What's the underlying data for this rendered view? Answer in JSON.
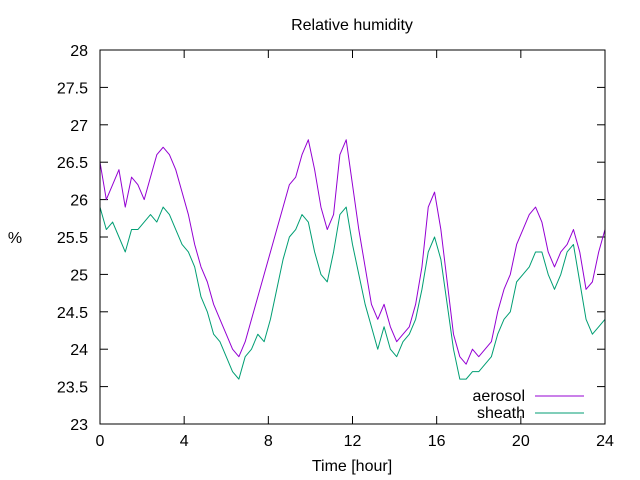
{
  "chart_data": {
    "type": "line",
    "title": "Relative humidity",
    "xlabel": "Time [hour]",
    "ylabel": "%",
    "xlim": [
      0,
      24
    ],
    "ylim": [
      23,
      28
    ],
    "xticks": [
      0,
      4,
      8,
      12,
      16,
      20,
      24
    ],
    "yticks": [
      23,
      23.5,
      24,
      24.5,
      25,
      25.5,
      26,
      26.5,
      27,
      27.5,
      28
    ],
    "grid": false,
    "legend_position": "bottom-right",
    "series": [
      {
        "name": "aerosol",
        "color": "#9400d3",
        "points": [
          [
            0.0,
            26.5
          ],
          [
            0.3,
            26.0
          ],
          [
            0.6,
            26.2
          ],
          [
            0.9,
            26.4
          ],
          [
            1.2,
            25.9
          ],
          [
            1.5,
            26.3
          ],
          [
            1.8,
            26.2
          ],
          [
            2.1,
            26.0
          ],
          [
            2.4,
            26.3
          ],
          [
            2.7,
            26.6
          ],
          [
            3.0,
            26.7
          ],
          [
            3.3,
            26.6
          ],
          [
            3.6,
            26.4
          ],
          [
            3.9,
            26.1
          ],
          [
            4.2,
            25.8
          ],
          [
            4.5,
            25.4
          ],
          [
            4.8,
            25.1
          ],
          [
            5.1,
            24.9
          ],
          [
            5.4,
            24.6
          ],
          [
            5.7,
            24.4
          ],
          [
            6.0,
            24.2
          ],
          [
            6.3,
            24.0
          ],
          [
            6.6,
            23.9
          ],
          [
            6.9,
            24.1
          ],
          [
            7.2,
            24.4
          ],
          [
            7.5,
            24.7
          ],
          [
            7.8,
            25.0
          ],
          [
            8.1,
            25.3
          ],
          [
            8.4,
            25.6
          ],
          [
            8.7,
            25.9
          ],
          [
            9.0,
            26.2
          ],
          [
            9.3,
            26.3
          ],
          [
            9.6,
            26.6
          ],
          [
            9.9,
            26.8
          ],
          [
            10.2,
            26.4
          ],
          [
            10.5,
            25.9
          ],
          [
            10.8,
            25.6
          ],
          [
            11.1,
            25.8
          ],
          [
            11.4,
            26.6
          ],
          [
            11.7,
            26.8
          ],
          [
            12.0,
            26.2
          ],
          [
            12.3,
            25.6
          ],
          [
            12.6,
            25.1
          ],
          [
            12.9,
            24.6
          ],
          [
            13.2,
            24.4
          ],
          [
            13.5,
            24.6
          ],
          [
            13.8,
            24.3
          ],
          [
            14.1,
            24.1
          ],
          [
            14.4,
            24.2
          ],
          [
            14.7,
            24.3
          ],
          [
            15.0,
            24.6
          ],
          [
            15.3,
            25.1
          ],
          [
            15.6,
            25.9
          ],
          [
            15.9,
            26.1
          ],
          [
            16.2,
            25.6
          ],
          [
            16.5,
            24.9
          ],
          [
            16.8,
            24.2
          ],
          [
            17.1,
            23.9
          ],
          [
            17.4,
            23.8
          ],
          [
            17.7,
            24.0
          ],
          [
            18.0,
            23.9
          ],
          [
            18.3,
            24.0
          ],
          [
            18.6,
            24.1
          ],
          [
            18.9,
            24.5
          ],
          [
            19.2,
            24.8
          ],
          [
            19.5,
            25.0
          ],
          [
            19.8,
            25.4
          ],
          [
            20.1,
            25.6
          ],
          [
            20.4,
            25.8
          ],
          [
            20.7,
            25.9
          ],
          [
            21.0,
            25.7
          ],
          [
            21.3,
            25.3
          ],
          [
            21.6,
            25.1
          ],
          [
            21.9,
            25.3
          ],
          [
            22.2,
            25.4
          ],
          [
            22.5,
            25.6
          ],
          [
            22.8,
            25.3
          ],
          [
            23.1,
            24.8
          ],
          [
            23.4,
            24.9
          ],
          [
            23.7,
            25.3
          ],
          [
            24.0,
            25.6
          ]
        ]
      },
      {
        "name": "sheath",
        "color": "#009e73",
        "points": [
          [
            0.0,
            25.9
          ],
          [
            0.3,
            25.6
          ],
          [
            0.6,
            25.7
          ],
          [
            0.9,
            25.5
          ],
          [
            1.2,
            25.3
          ],
          [
            1.5,
            25.6
          ],
          [
            1.8,
            25.6
          ],
          [
            2.1,
            25.7
          ],
          [
            2.4,
            25.8
          ],
          [
            2.7,
            25.7
          ],
          [
            3.0,
            25.9
          ],
          [
            3.3,
            25.8
          ],
          [
            3.6,
            25.6
          ],
          [
            3.9,
            25.4
          ],
          [
            4.2,
            25.3
          ],
          [
            4.5,
            25.1
          ],
          [
            4.8,
            24.7
          ],
          [
            5.1,
            24.5
          ],
          [
            5.4,
            24.2
          ],
          [
            5.7,
            24.1
          ],
          [
            6.0,
            23.9
          ],
          [
            6.3,
            23.7
          ],
          [
            6.6,
            23.6
          ],
          [
            6.9,
            23.9
          ],
          [
            7.2,
            24.0
          ],
          [
            7.5,
            24.2
          ],
          [
            7.8,
            24.1
          ],
          [
            8.1,
            24.4
          ],
          [
            8.4,
            24.8
          ],
          [
            8.7,
            25.2
          ],
          [
            9.0,
            25.5
          ],
          [
            9.3,
            25.6
          ],
          [
            9.6,
            25.8
          ],
          [
            9.9,
            25.7
          ],
          [
            10.2,
            25.3
          ],
          [
            10.5,
            25.0
          ],
          [
            10.8,
            24.9
          ],
          [
            11.1,
            25.3
          ],
          [
            11.4,
            25.8
          ],
          [
            11.7,
            25.9
          ],
          [
            12.0,
            25.4
          ],
          [
            12.3,
            25.0
          ],
          [
            12.6,
            24.6
          ],
          [
            12.9,
            24.3
          ],
          [
            13.2,
            24.0
          ],
          [
            13.5,
            24.3
          ],
          [
            13.8,
            24.0
          ],
          [
            14.1,
            23.9
          ],
          [
            14.4,
            24.1
          ],
          [
            14.7,
            24.2
          ],
          [
            15.0,
            24.4
          ],
          [
            15.3,
            24.8
          ],
          [
            15.6,
            25.3
          ],
          [
            15.9,
            25.5
          ],
          [
            16.2,
            25.2
          ],
          [
            16.5,
            24.6
          ],
          [
            16.8,
            24.0
          ],
          [
            17.1,
            23.6
          ],
          [
            17.4,
            23.6
          ],
          [
            17.7,
            23.7
          ],
          [
            18.0,
            23.7
          ],
          [
            18.3,
            23.8
          ],
          [
            18.6,
            23.9
          ],
          [
            18.9,
            24.2
          ],
          [
            19.2,
            24.4
          ],
          [
            19.5,
            24.5
          ],
          [
            19.8,
            24.9
          ],
          [
            20.1,
            25.0
          ],
          [
            20.4,
            25.1
          ],
          [
            20.7,
            25.3
          ],
          [
            21.0,
            25.3
          ],
          [
            21.3,
            25.0
          ],
          [
            21.6,
            24.8
          ],
          [
            21.9,
            25.0
          ],
          [
            22.2,
            25.3
          ],
          [
            22.5,
            25.4
          ],
          [
            22.8,
            24.9
          ],
          [
            23.1,
            24.4
          ],
          [
            23.4,
            24.2
          ],
          [
            23.7,
            24.3
          ],
          [
            24.0,
            24.4
          ]
        ]
      }
    ]
  }
}
